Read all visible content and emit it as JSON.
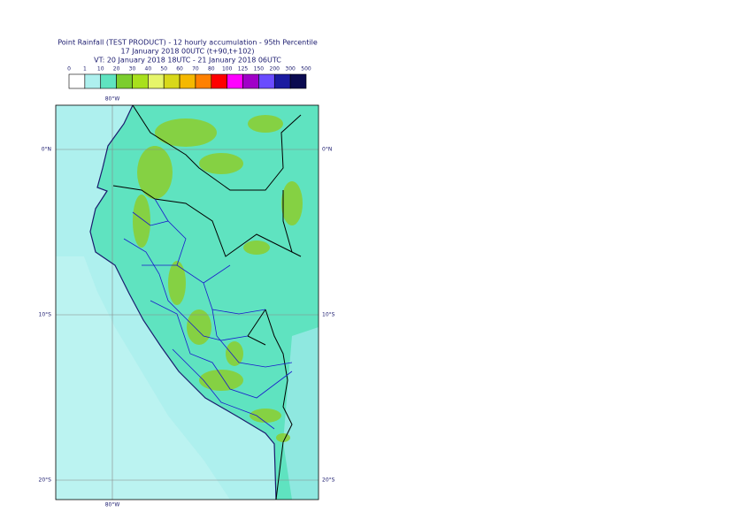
{
  "header": {
    "title": "Point Rainfall (TEST PRODUCT) - 12 hourly accumulation - 95th Percentile",
    "subtitle": "17 January 2018 00UTC (t+90,t+102)",
    "valid_time": "VT: 20 January 2018 18UTC - 21 January 2018 06UTC"
  },
  "legend": {
    "labels": [
      "0",
      "1",
      "10",
      "20",
      "30",
      "40",
      "50",
      "60",
      "70",
      "80",
      "100",
      "125",
      "150",
      "200",
      "300",
      "500"
    ],
    "colors": [
      "#ffffff",
      "#aef0ee",
      "#5fe3c0",
      "#7ccd2e",
      "#a8e01c",
      "#e6f56a",
      "#d8d81a",
      "#f5b800",
      "#ff8000",
      "#ff0000",
      "#ff00ff",
      "#a000c8",
      "#6a4cff",
      "#1a1aa0",
      "#0a0a50"
    ]
  },
  "map": {
    "lat_labels_left": [
      "0°N",
      "10°S",
      "20°S"
    ],
    "lat_labels_right": [
      "0°N",
      "10°S",
      "20°S"
    ],
    "lon_label_top": "80°W",
    "lon_label_bottom": "80°W"
  }
}
